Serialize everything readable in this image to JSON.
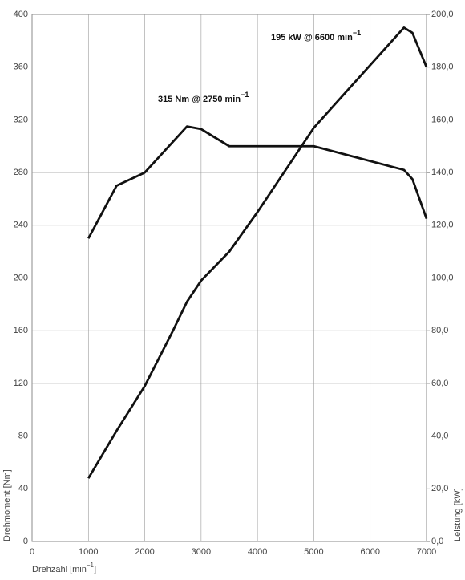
{
  "chart_data": {
    "type": "line",
    "xlabel": {
      "text": "Drehzahl [min",
      "sup": "−1",
      "end": "]"
    },
    "ylabel": "Drehmoment [Nm]",
    "y2label": "Leistung [kW]",
    "xlim": [
      0,
      7000
    ],
    "xticks": [
      0,
      1000,
      2000,
      3000,
      4000,
      5000,
      6000,
      7000
    ],
    "ylim": [
      0,
      400
    ],
    "yticks": [
      0,
      40,
      80,
      120,
      160,
      200,
      240,
      280,
      320,
      360,
      400
    ],
    "y2lim": [
      0,
      200
    ],
    "y2ticks": [
      {
        "value": 0,
        "label": "0,0"
      },
      {
        "value": 20,
        "label": "20,0"
      },
      {
        "value": 40,
        "label": "40,0"
      },
      {
        "value": 60,
        "label": "60,0"
      },
      {
        "value": 80,
        "label": "80,0"
      },
      {
        "value": 100,
        "label": "100,0"
      },
      {
        "value": 120,
        "label": "120,0"
      },
      {
        "value": 140,
        "label": "140,0"
      },
      {
        "value": 160,
        "label": "160,0"
      },
      {
        "value": 180,
        "label": "180,0"
      },
      {
        "value": 200,
        "label": "200,0"
      }
    ],
    "grid": true,
    "series": [
      {
        "color": "#111111",
        "x": [
          1000,
          1500,
          2000,
          2750,
          3000,
          3500,
          5000,
          6600,
          6750,
          7000
        ],
        "values": [
          230,
          270,
          280,
          315,
          313,
          300,
          300,
          282,
          275,
          245
        ]
      },
      {
        "color": "#111111",
        "axis": "y2",
        "x": [
          1000,
          1500,
          2000,
          2500,
          2750,
          3000,
          3500,
          4000,
          5000,
          6600,
          6750,
          7000
        ],
        "values": [
          24,
          42,
          59,
          80,
          91,
          99,
          110,
          125,
          157,
          195,
          193,
          180
        ]
      }
    ],
    "annotations": [
      {
        "text": "315 Nm @ 2750 min",
        "sup": "−1"
      },
      {
        "text": "195 kW @ 6600 min",
        "sup": "−1"
      }
    ]
  }
}
